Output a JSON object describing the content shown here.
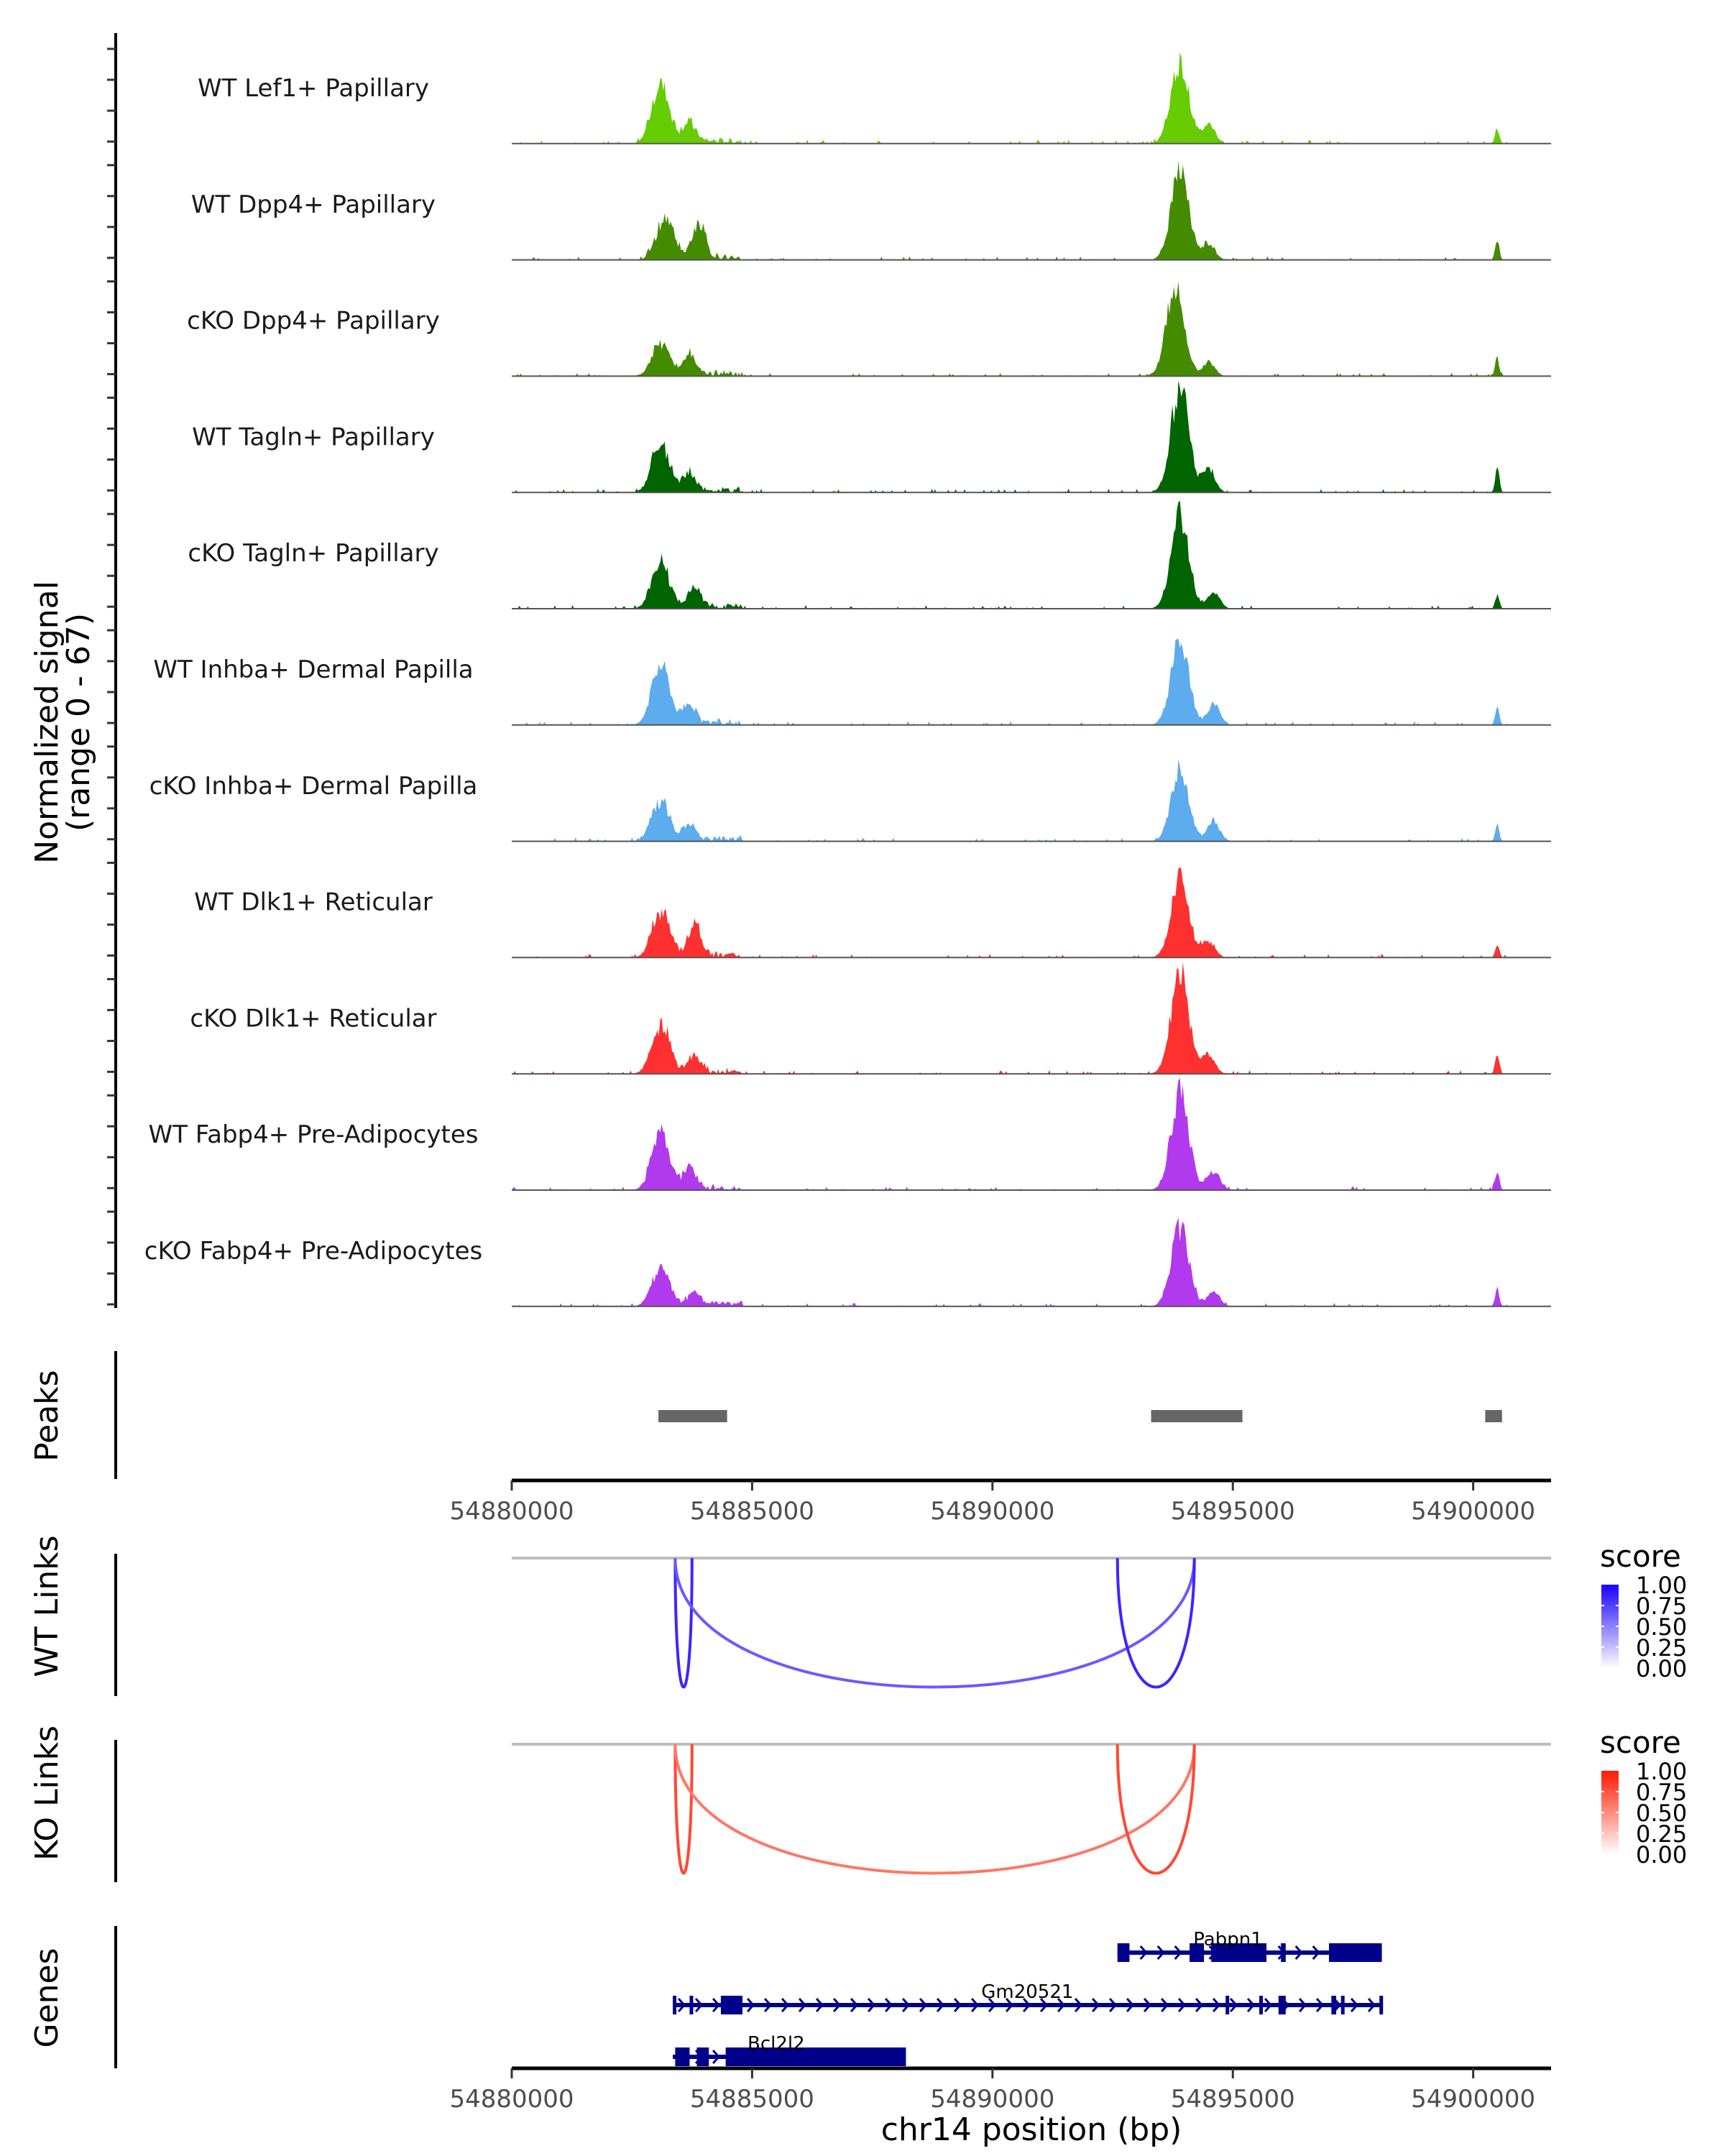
{
  "chart_data": {
    "type": "area",
    "title": "",
    "region": "chr14:54880000-54901600",
    "xlabel": "chr14 position (bp)",
    "x_range": [
      54880000,
      54901620
    ],
    "x_ticks": [
      54880000,
      54885000,
      54890000,
      54895000,
      54900000
    ],
    "x_tick_labels": [
      "54880000",
      "54885000",
      "54890000",
      "54895000",
      "54900000"
    ],
    "coverage": {
      "ylabel_line1": "Normalized signal",
      "ylabel_line2": "(range 0 - 67)",
      "ylim": [
        0,
        67
      ],
      "tracks": [
        {
          "name": "WT Lef1+ Papillary",
          "color": "#66CC00",
          "peaks": [
            [
              54883100,
              35
            ],
            [
              54883700,
              12
            ],
            [
              54893900,
              50
            ],
            [
              54894500,
              12
            ],
            [
              54900500,
              10
            ]
          ]
        },
        {
          "name": "WT Dpp4+ Papillary",
          "color": "#458B00",
          "peaks": [
            [
              54883200,
              23
            ],
            [
              54883900,
              22
            ],
            [
              54893900,
              55
            ],
            [
              54894500,
              10
            ],
            [
              54900500,
              13
            ]
          ]
        },
        {
          "name": "cKO Dpp4+ Papillary",
          "color": "#458B00",
          "peaks": [
            [
              54883100,
              18
            ],
            [
              54883700,
              12
            ],
            [
              54893800,
              56
            ],
            [
              54894500,
              9
            ],
            [
              54900500,
              11
            ]
          ]
        },
        {
          "name": "WT Tagln+ Papillary",
          "color": "#006400",
          "peaks": [
            [
              54883100,
              28
            ],
            [
              54883700,
              10
            ],
            [
              54893900,
              64
            ],
            [
              54894500,
              15
            ],
            [
              54900500,
              15
            ]
          ]
        },
        {
          "name": "cKO Tagln+ Papillary",
          "color": "#006400",
          "peaks": [
            [
              54883100,
              26
            ],
            [
              54883800,
              12
            ],
            [
              54893900,
              58
            ],
            [
              54894600,
              10
            ],
            [
              54900500,
              9
            ]
          ]
        },
        {
          "name": "WT Inhba+ Dermal Papilla",
          "color": "#5CACEE",
          "peaks": [
            [
              54883100,
              36
            ],
            [
              54883700,
              12
            ],
            [
              54893900,
              51
            ],
            [
              54894600,
              13
            ],
            [
              54900500,
              12
            ]
          ]
        },
        {
          "name": "cKO Inhba+ Dermal Papilla",
          "color": "#5CACEE",
          "peaks": [
            [
              54883100,
              23
            ],
            [
              54883700,
              9
            ],
            [
              54893900,
              44
            ],
            [
              54894600,
              13
            ],
            [
              54900500,
              9
            ]
          ]
        },
        {
          "name": "WT Dlk1+ Reticular",
          "color": "#FF3030",
          "peaks": [
            [
              54883100,
              27
            ],
            [
              54883800,
              20
            ],
            [
              54893900,
              48
            ],
            [
              54894500,
              10
            ],
            [
              54900500,
              8
            ]
          ]
        },
        {
          "name": "cKO Dlk1+ Reticular",
          "color": "#FF3030",
          "peaks": [
            [
              54883100,
              29
            ],
            [
              54883800,
              11
            ],
            [
              54893900,
              63
            ],
            [
              54894500,
              12
            ],
            [
              54900500,
              12
            ]
          ]
        },
        {
          "name": "WT Fabp4+ Pre-Adipocytes",
          "color": "#B23AEE",
          "peaks": [
            [
              54883100,
              33
            ],
            [
              54883700,
              12
            ],
            [
              54893900,
              60
            ],
            [
              54894600,
              12
            ],
            [
              54900500,
              11
            ]
          ]
        },
        {
          "name": "cKO Fabp4+ Pre-Adipocytes",
          "color": "#B23AEE",
          "peaks": [
            [
              54883100,
              22
            ],
            [
              54883800,
              8
            ],
            [
              54893900,
              48
            ],
            [
              54894600,
              9
            ],
            [
              54900500,
              10
            ]
          ]
        }
      ]
    },
    "peaks_track": {
      "label": "Peaks",
      "color": "#666666",
      "regions": [
        [
          54883050,
          54884480
        ],
        [
          54893300,
          54895200
        ],
        [
          54900250,
          54900600
        ]
      ]
    },
    "links": [
      {
        "label": "WT Links",
        "legend_title": "score",
        "legend_ticks": [
          "1.00",
          "0.75",
          "0.50",
          "0.25",
          "0.00"
        ],
        "color_low": "#FFFFFF",
        "color_high": "#1A00FF",
        "arcs": [
          {
            "start": 54883400,
            "end": 54883750,
            "score": 0.85
          },
          {
            "start": 54883400,
            "end": 54894200,
            "score": 0.65
          },
          {
            "start": 54892600,
            "end": 54894200,
            "score": 0.85
          }
        ]
      },
      {
        "label": "KO Links",
        "legend_title": "score",
        "legend_ticks": [
          "1.00",
          "0.75",
          "0.50",
          "0.25",
          "0.00"
        ],
        "color_low": "#FFFFFF",
        "color_high": "#FF1A00",
        "arcs": [
          {
            "start": 54883400,
            "end": 54883750,
            "score": 0.8
          },
          {
            "start": 54883400,
            "end": 54894200,
            "score": 0.6
          },
          {
            "start": 54892600,
            "end": 54894200,
            "score": 0.8
          }
        ]
      }
    ],
    "genes": {
      "label": "Genes",
      "color": "#00008B",
      "items": [
        {
          "name": "Pabpn1",
          "start": 54892600,
          "end": 54898100,
          "strand": "+",
          "exons": [
            [
              54892600,
              54892850
            ],
            [
              54894100,
              54894400
            ],
            [
              54894550,
              54895700
            ],
            [
              54896000,
              54896100
            ],
            [
              54897000,
              54898100
            ]
          ]
        },
        {
          "name": "Gm20521",
          "start": 54883350,
          "end": 54898100,
          "strand": "+",
          "exons": [
            [
              54883350,
              54883400
            ],
            [
              54883700,
              54883760
            ],
            [
              54884350,
              54884800
            ],
            [
              54894850,
              54894900
            ],
            [
              54895550,
              54895600
            ],
            [
              54895950,
              54896100
            ],
            [
              54897050,
              54897150
            ],
            [
              54897250,
              54897300
            ],
            [
              54898050,
              54898100
            ]
          ]
        },
        {
          "name": "Bcl2l2",
          "start": 54883350,
          "end": 54888200,
          "strand": "+",
          "exons": [
            [
              54883400,
              54883700
            ],
            [
              54883850,
              54884100
            ],
            [
              54884450,
              54888200
            ]
          ]
        }
      ]
    }
  }
}
